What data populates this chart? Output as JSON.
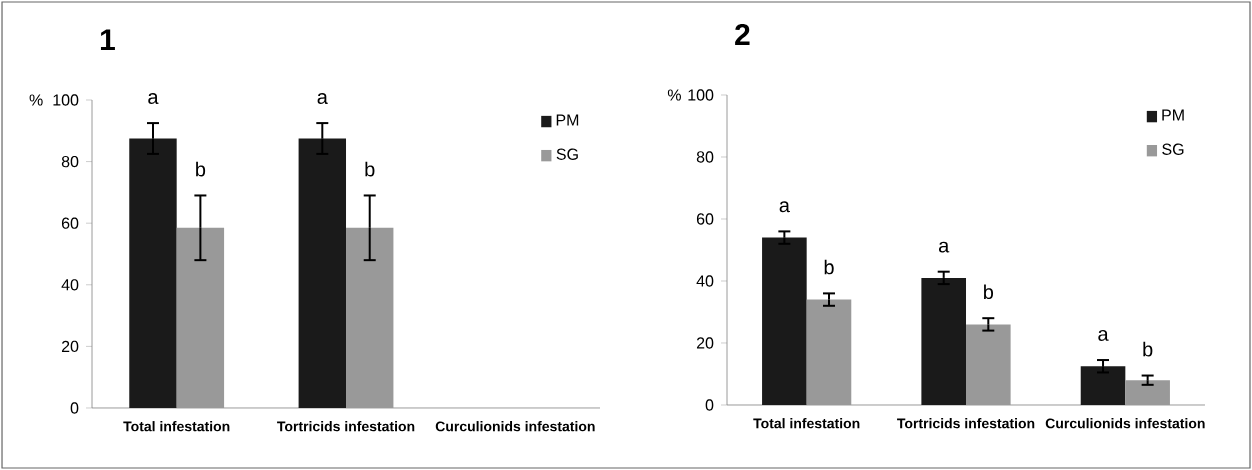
{
  "chart_data": [
    {
      "type": "bar",
      "title": "1",
      "ylabel": "%",
      "categories": [
        "Total infestation",
        "Tortricids infestation",
        "Curculionids infestation"
      ],
      "series": [
        {
          "name": "PM",
          "color": "#1a1a1a",
          "values": [
            87.5,
            87.5,
            null
          ],
          "errors": [
            5,
            5,
            null
          ]
        },
        {
          "name": "SG",
          "color": "#999999",
          "values": [
            58.5,
            58.5,
            null
          ],
          "errors": [
            10.5,
            10.5,
            null
          ]
        }
      ],
      "ylim": [
        0,
        100
      ],
      "yticks": [
        0,
        20,
        40,
        60,
        80,
        100
      ],
      "legend": "top right",
      "annotations": [
        "a",
        "b",
        "a",
        "b"
      ]
    },
    {
      "type": "bar",
      "title": "2",
      "ylabel": "%",
      "categories": [
        "Total infestation",
        "Tortricids infestation",
        "Curculionids infestation"
      ],
      "series": [
        {
          "name": "PM",
          "color": "#1a1a1a",
          "values": [
            54,
            41,
            12.5
          ],
          "errors": [
            2,
            2,
            2
          ]
        },
        {
          "name": "SG",
          "color": "#999999",
          "values": [
            34,
            26,
            8
          ],
          "errors": [
            2,
            2,
            1.5
          ]
        }
      ],
      "ylim": [
        0,
        100
      ],
      "yticks": [
        0,
        20,
        40,
        60,
        80,
        100
      ],
      "legend": "top right",
      "annotations": [
        "a",
        "b",
        "a",
        "b",
        "a",
        "b"
      ]
    }
  ]
}
